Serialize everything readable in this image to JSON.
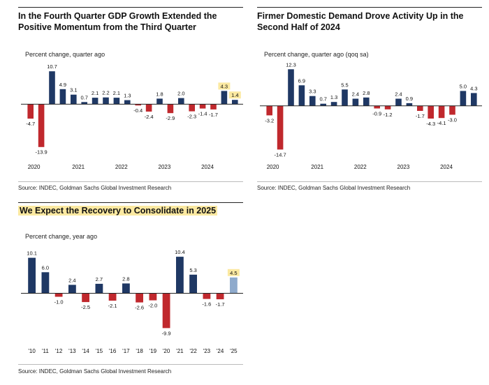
{
  "colors": {
    "positive": "#1f3864",
    "negative": "#c0282d",
    "forecast": "#8faacc",
    "highlight": "#fbe9a1"
  },
  "panels": [
    {
      "title": "In the Fourth Quarter GDP Growth Extended the Positive Momentum from the Third Quarter",
      "title_highlight": false,
      "subtitle": "Percent change, quarter ago",
      "source": "Source: INDEC, Goldman Sachs Global Investment Research"
    },
    {
      "title": "Firmer Domestic Demand Drove Activity Up in the Second Half of 2024",
      "title_highlight": false,
      "subtitle": "Percent change, quarter ago (qoq sa)",
      "source": "Source: INDEC, Goldman Sachs Global Investment Research"
    },
    {
      "title": "We Expect the Recovery to Consolidate in 2025",
      "title_highlight": true,
      "subtitle": "Percent change, year ago",
      "source": "Source: INDEC, Goldman Sachs Global Investment Research"
    }
  ],
  "chart_data": [
    {
      "type": "bar",
      "title": "In the Fourth Quarter GDP Growth Extended the Positive Momentum from the Third Quarter",
      "ylabel": "Percent change, quarter ago",
      "values": [
        -4.7,
        -13.9,
        10.7,
        4.9,
        3.1,
        0.7,
        2.1,
        2.2,
        2.1,
        1.3,
        -0.4,
        -2.4,
        1.8,
        -2.9,
        2.0,
        -2.3,
        -1.4,
        -1.7,
        4.3,
        1.4
      ],
      "value_labels": [
        "-4.7",
        "-13.9",
        "10.7",
        "4.9",
        "3.1",
        "0.7",
        "2.1",
        "2.2",
        "2.1",
        "1.3",
        "-0.4",
        "-2.4",
        "1.8",
        "-2.9",
        "2.0",
        "-2.3",
        "-1.4",
        "-1.7",
        "4.3",
        "1.4"
      ],
      "highlighted_labels": [
        18,
        19
      ],
      "x_ticks": [
        {
          "index": 0,
          "label": "2020"
        },
        {
          "index": 4,
          "label": "2021"
        },
        {
          "index": 8,
          "label": "2022"
        },
        {
          "index": 12,
          "label": "2023"
        },
        {
          "index": 16,
          "label": "2024"
        }
      ],
      "ylim": [
        -16,
        13
      ],
      "legend": "none"
    },
    {
      "type": "bar",
      "title": "Firmer Domestic Demand Drove Activity Up in the Second Half of 2024",
      "ylabel": "Percent change, quarter ago (qoq sa)",
      "values": [
        -3.2,
        -14.7,
        12.3,
        6.9,
        3.3,
        0.7,
        1.3,
        5.5,
        2.4,
        2.8,
        -0.9,
        -1.2,
        2.4,
        0.9,
        -1.7,
        -4.3,
        -4.1,
        -3.0,
        5.0,
        4.3
      ],
      "value_labels": [
        "-3.2",
        "-14.7",
        "12.3",
        "6.9",
        "3.3",
        "0.7",
        "1.3",
        "5.5",
        "2.4",
        "2.8",
        "-0.9",
        "-1.2",
        "2.4",
        "0.9",
        "-1.7",
        "-4.3",
        "-4.1",
        "-3.0",
        "5.0",
        "4.3"
      ],
      "highlighted_labels": [],
      "x_ticks": [
        {
          "index": 0,
          "label": "2020"
        },
        {
          "index": 4,
          "label": "2021"
        },
        {
          "index": 8,
          "label": "2022"
        },
        {
          "index": 12,
          "label": "2023"
        },
        {
          "index": 16,
          "label": "2024"
        }
      ],
      "ylim": [
        -16,
        14
      ],
      "legend": "none"
    },
    {
      "type": "bar",
      "title": "We Expect the Recovery to Consolidate in 2025",
      "ylabel": "Percent change, year ago",
      "values": [
        10.1,
        6.0,
        -1.0,
        2.4,
        -2.5,
        2.7,
        -2.1,
        2.8,
        -2.6,
        -2.0,
        -9.9,
        10.4,
        5.3,
        -1.6,
        -1.7,
        4.5
      ],
      "value_labels": [
        "10.1",
        "6.0",
        "-1.0",
        "2.4",
        "-2.5",
        "2.7",
        "-2.1",
        "2.8",
        "-2.6",
        "-2.0",
        "-9.9",
        "10.4",
        "5.3",
        "-1.6",
        "-1.7",
        "4.5"
      ],
      "highlighted_labels": [
        15
      ],
      "forecast_index": 15,
      "x_ticks": [
        {
          "index": 0,
          "label": "'10"
        },
        {
          "index": 1,
          "label": "'11"
        },
        {
          "index": 2,
          "label": "'12"
        },
        {
          "index": 3,
          "label": "'13"
        },
        {
          "index": 4,
          "label": "'14"
        },
        {
          "index": 5,
          "label": "'15"
        },
        {
          "index": 6,
          "label": "'16"
        },
        {
          "index": 7,
          "label": "'17"
        },
        {
          "index": 8,
          "label": "'18"
        },
        {
          "index": 9,
          "label": "'19"
        },
        {
          "index": 10,
          "label": "'20"
        },
        {
          "index": 11,
          "label": "'21"
        },
        {
          "index": 12,
          "label": "'22"
        },
        {
          "index": 13,
          "label": "'23"
        },
        {
          "index": 14,
          "label": "'24"
        },
        {
          "index": 15,
          "label": "'25"
        }
      ],
      "ylim": [
        -11,
        12
      ],
      "legend": "none"
    }
  ]
}
